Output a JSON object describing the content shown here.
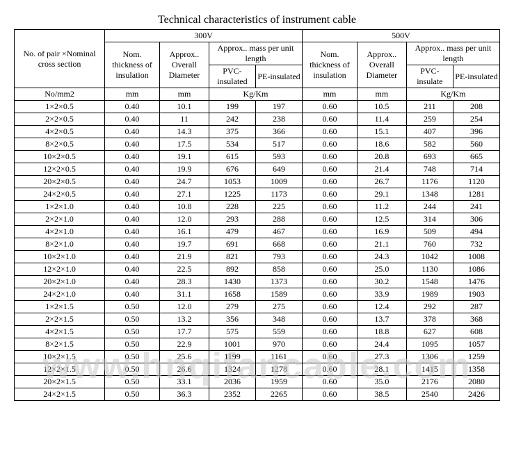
{
  "title": "Technical characteristics of instrument cable",
  "headers": {
    "col_spec": "No. of pair ×Nominal cross section",
    "v300": "300V",
    "v500": "500V",
    "nom_thick": "Nom. thickness of insulation",
    "approx_diam": "Approx.. Overall Diameter",
    "approx_mass": "Approx.. mass per unit length",
    "pvc": "PVC-insulated",
    "pe": "PE-insulated",
    "pvc2": "PVC-insulate",
    "pe2": "PE-insulated",
    "unit_spec": "No/mm2",
    "unit_mm": "mm",
    "unit_kgkm": "Kg/Km"
  },
  "rows": [
    {
      "spec": "1×2×0.5",
      "t1": "0.40",
      "d1": "10.1",
      "pvc1": "199",
      "pe1": "197",
      "t2": "0.60",
      "d2": "10.5",
      "pvc2": "211",
      "pe2": "208"
    },
    {
      "spec": "2×2×0.5",
      "t1": "0.40",
      "d1": "11",
      "pvc1": "242",
      "pe1": "238",
      "t2": "0.60",
      "d2": "11.4",
      "pvc2": "259",
      "pe2": "254"
    },
    {
      "spec": "4×2×0.5",
      "t1": "0.40",
      "d1": "14.3",
      "pvc1": "375",
      "pe1": "366",
      "t2": "0.60",
      "d2": "15.1",
      "pvc2": "407",
      "pe2": "396"
    },
    {
      "spec": "8×2×0.5",
      "t1": "0.40",
      "d1": "17.5",
      "pvc1": "534",
      "pe1": "517",
      "t2": "0.60",
      "d2": "18.6",
      "pvc2": "582",
      "pe2": "560"
    },
    {
      "spec": "10×2×0.5",
      "t1": "0.40",
      "d1": "19.1",
      "pvc1": "615",
      "pe1": "593",
      "t2": "0.60",
      "d2": "20.8",
      "pvc2": "693",
      "pe2": "665"
    },
    {
      "spec": "12×2×0.5",
      "t1": "0.40",
      "d1": "19.9",
      "pvc1": "676",
      "pe1": "649",
      "t2": "0.60",
      "d2": "21.4",
      "pvc2": "748",
      "pe2": "714"
    },
    {
      "spec": "20×2×0.5",
      "t1": "0.40",
      "d1": "24.7",
      "pvc1": "1053",
      "pe1": "1009",
      "t2": "0.60",
      "d2": "26.7",
      "pvc2": "1176",
      "pe2": "1120"
    },
    {
      "spec": "24×2×0.5",
      "t1": "0.40",
      "d1": "27.1",
      "pvc1": "1225",
      "pe1": "1173",
      "t2": "0.60",
      "d2": "29.1",
      "pvc2": "1348",
      "pe2": "1281"
    },
    {
      "spec": "1×2×1.0",
      "t1": "0.40",
      "d1": "10.8",
      "pvc1": "228",
      "pe1": "225",
      "t2": "0.60",
      "d2": "11.2",
      "pvc2": "244",
      "pe2": "241"
    },
    {
      "spec": "2×2×1.0",
      "t1": "0.40",
      "d1": "12.0",
      "pvc1": "293",
      "pe1": "288",
      "t2": "0.60",
      "d2": "12.5",
      "pvc2": "314",
      "pe2": "306"
    },
    {
      "spec": "4×2×1.0",
      "t1": "0.40",
      "d1": "16.1",
      "pvc1": "479",
      "pe1": "467",
      "t2": "0.60",
      "d2": "16.9",
      "pvc2": "509",
      "pe2": "494"
    },
    {
      "spec": "8×2×1.0",
      "t1": "0.40",
      "d1": "19.7",
      "pvc1": "691",
      "pe1": "668",
      "t2": "0.60",
      "d2": "21.1",
      "pvc2": "760",
      "pe2": "732"
    },
    {
      "spec": "10×2×1.0",
      "t1": "0.40",
      "d1": "21.9",
      "pvc1": "821",
      "pe1": "793",
      "t2": "0.60",
      "d2": "24.3",
      "pvc2": "1042",
      "pe2": "1008"
    },
    {
      "spec": "12×2×1.0",
      "t1": "0.40",
      "d1": "22.5",
      "pvc1": "892",
      "pe1": "858",
      "t2": "0.60",
      "d2": "25.0",
      "pvc2": "1130",
      "pe2": "1086"
    },
    {
      "spec": "20×2×1.0",
      "t1": "0.40",
      "d1": "28.3",
      "pvc1": "1430",
      "pe1": "1373",
      "t2": "0.60",
      "d2": "30.2",
      "pvc2": "1548",
      "pe2": "1476"
    },
    {
      "spec": "24×2×1.0",
      "t1": "0.40",
      "d1": "31.1",
      "pvc1": "1658",
      "pe1": "1589",
      "t2": "0.60",
      "d2": "33.9",
      "pvc2": "1989",
      "pe2": "1903"
    },
    {
      "spec": "1×2×1.5",
      "t1": "0.50",
      "d1": "12.0",
      "pvc1": "279",
      "pe1": "275",
      "t2": "0.60",
      "d2": "12.4",
      "pvc2": "292",
      "pe2": "287"
    },
    {
      "spec": "2×2×1.5",
      "t1": "0.50",
      "d1": "13.2",
      "pvc1": "356",
      "pe1": "348",
      "t2": "0.60",
      "d2": "13.7",
      "pvc2": "378",
      "pe2": "368"
    },
    {
      "spec": "4×2×1.5",
      "t1": "0.50",
      "d1": "17.7",
      "pvc1": "575",
      "pe1": "559",
      "t2": "0.60",
      "d2": "18.8",
      "pvc2": "627",
      "pe2": "608"
    },
    {
      "spec": "8×2×1.5",
      "t1": "0.50",
      "d1": "22.9",
      "pvc1": "1001",
      "pe1": "970",
      "t2": "0.60",
      "d2": "24.4",
      "pvc2": "1095",
      "pe2": "1057"
    },
    {
      "spec": "10×2×1.5",
      "t1": "0.50",
      "d1": "25.6",
      "pvc1": "1199",
      "pe1": "1161",
      "t2": "0.60",
      "d2": "27.3",
      "pvc2": "1306",
      "pe2": "1259"
    },
    {
      "spec": "12×2×1.5",
      "t1": "0.50",
      "d1": "26.6",
      "pvc1": "1324",
      "pe1": "1278",
      "t2": "0.60",
      "d2": "28.1",
      "pvc2": "1415",
      "pe2": "1358"
    },
    {
      "spec": "20×2×1.5",
      "t1": "0.50",
      "d1": "33.1",
      "pvc1": "2036",
      "pe1": "1959",
      "t2": "0.60",
      "d2": "35.0",
      "pvc2": "2176",
      "pe2": "2080"
    },
    {
      "spec": "24×2×1.5",
      "t1": "0.50",
      "d1": "36.3",
      "pvc1": "2352",
      "pe1": "2265",
      "t2": "0.60",
      "d2": "38.5",
      "pvc2": "2540",
      "pe2": "2426"
    }
  ],
  "watermark": "www.hnqifancable.com"
}
